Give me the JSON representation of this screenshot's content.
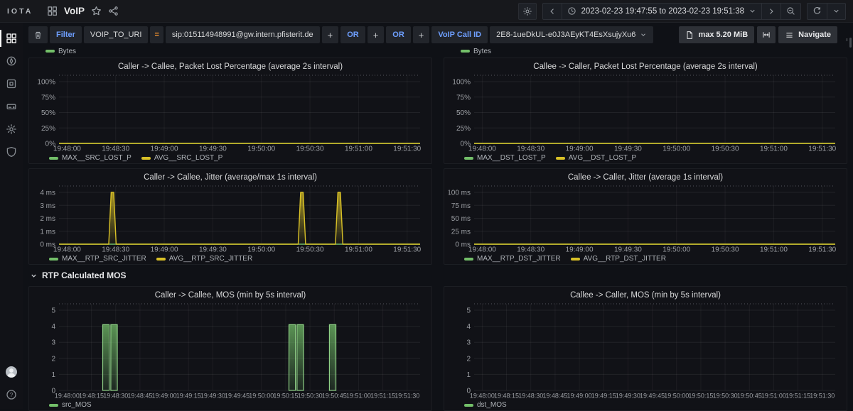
{
  "app": {
    "logo": "IOTA",
    "nav": {
      "title": "VoIP",
      "time_range": "2023-02-23 19:47:55 to 2023-02-23 19:51:38"
    },
    "filter_bar": {
      "filter_label": "Filter",
      "field_chip": "VOIP_TO_URI",
      "operator": "=",
      "value_chip": "sip:015114948991@gw.intern.pfisterit.de",
      "plus": "+",
      "or": "OR",
      "callid_label": "VoIP Call ID",
      "callid_value": "2E8-1ueDkUL-e0J3AEyKT4EsXsujyXu6"
    },
    "actions": {
      "max_size": "max 5.20 MiB",
      "navigate": "Navigate"
    },
    "section_header": "RTP Calculated MOS",
    "cutoff_legend": "Bytes"
  },
  "colors": {
    "green": "#73bf69",
    "yellow": "#d9c127",
    "blue": "#6e9fff",
    "orange": "#ff9830"
  },
  "chart_data": [
    {
      "type": "line",
      "title": "Caller -> Callee, Packet Lost Percentage (average 2s interval)",
      "ylim": [
        0,
        100
      ],
      "y_ticks": [
        {
          "v": 0,
          "label": "0%"
        },
        {
          "v": 25,
          "label": "25%"
        },
        {
          "v": 50,
          "label": "50%"
        },
        {
          "v": 75,
          "label": "75%"
        },
        {
          "v": 100,
          "label": "100%"
        }
      ],
      "x_start": "19:47:55",
      "x_domain_seconds": 223,
      "x_ticks": [
        {
          "t": 5,
          "label": "19:48:00"
        },
        {
          "t": 35,
          "label": "19:48:30"
        },
        {
          "t": 65,
          "label": "19:49:00"
        },
        {
          "t": 95,
          "label": "19:49:30"
        },
        {
          "t": 125,
          "label": "19:50:00"
        },
        {
          "t": 155,
          "label": "19:50:30"
        },
        {
          "t": 185,
          "label": "19:51:00"
        },
        {
          "t": 215,
          "label": "19:51:30"
        }
      ],
      "series": [
        {
          "name": "MAX__SRC_LOST_P",
          "color": "#73bf69",
          "shape": "flat",
          "value": 0
        },
        {
          "name": "AVG__SRC_LOST_P",
          "color": "#d9c127",
          "shape": "flat",
          "value": 0
        }
      ]
    },
    {
      "type": "line",
      "title": "Callee -> Caller, Packet Lost Percentage (average 2s interval)",
      "ylim": [
        0,
        100
      ],
      "y_ticks": [
        {
          "v": 0,
          "label": "0%"
        },
        {
          "v": 25,
          "label": "25%"
        },
        {
          "v": 50,
          "label": "50%"
        },
        {
          "v": 75,
          "label": "75%"
        },
        {
          "v": 100,
          "label": "100%"
        }
      ],
      "x_start": "19:47:55",
      "x_domain_seconds": 223,
      "x_ticks": [
        {
          "t": 5,
          "label": "19:48:00"
        },
        {
          "t": 35,
          "label": "19:48:30"
        },
        {
          "t": 65,
          "label": "19:49:00"
        },
        {
          "t": 95,
          "label": "19:49:30"
        },
        {
          "t": 125,
          "label": "19:50:00"
        },
        {
          "t": 155,
          "label": "19:50:30"
        },
        {
          "t": 185,
          "label": "19:51:00"
        },
        {
          "t": 215,
          "label": "19:51:30"
        }
      ],
      "series": [
        {
          "name": "MAX__DST_LOST_P",
          "color": "#73bf69",
          "shape": "flat",
          "value": 0
        },
        {
          "name": "AVG__DST_LOST_P",
          "color": "#d9c127",
          "shape": "flat",
          "value": 0
        }
      ]
    },
    {
      "type": "line",
      "title": "Caller -> Callee, Jitter (average/max 1s interval)",
      "ylim": [
        0,
        4
      ],
      "y_ticks": [
        {
          "v": 0,
          "label": "0 ms"
        },
        {
          "v": 1,
          "label": "1 ms"
        },
        {
          "v": 2,
          "label": "2 ms"
        },
        {
          "v": 3,
          "label": "3 ms"
        },
        {
          "v": 4,
          "label": "4 ms"
        }
      ],
      "x_start": "19:47:55",
      "x_domain_seconds": 223,
      "x_ticks": [
        {
          "t": 5,
          "label": "19:48:00"
        },
        {
          "t": 35,
          "label": "19:48:30"
        },
        {
          "t": 65,
          "label": "19:49:00"
        },
        {
          "t": 95,
          "label": "19:49:30"
        },
        {
          "t": 125,
          "label": "19:50:00"
        },
        {
          "t": 155,
          "label": "19:50:30"
        },
        {
          "t": 185,
          "label": "19:51:00"
        },
        {
          "t": 215,
          "label": "19:51:30"
        }
      ],
      "series": [
        {
          "name": "MAX__RTP_SRC_JITTER",
          "color": "#73bf69",
          "shape": "flat",
          "value": 0
        },
        {
          "name": "AVG__RTP_SRC_JITTER",
          "color": "#d9c127",
          "shape": "spikes",
          "baseline": 0,
          "spikes": [
            {
              "t": 33,
              "peak": 4
            },
            {
              "t": 150,
              "peak": 4
            },
            {
              "t": 173,
              "peak": 4
            }
          ]
        }
      ]
    },
    {
      "type": "line",
      "title": "Callee -> Caller, Jitter (average 1s interval)",
      "ylim": [
        0,
        100
      ],
      "y_ticks": [
        {
          "v": 0,
          "label": "0 ms"
        },
        {
          "v": 25,
          "label": "25 ms"
        },
        {
          "v": 50,
          "label": "50 ms"
        },
        {
          "v": 75,
          "label": "75 ms"
        },
        {
          "v": 100,
          "label": "100 ms"
        }
      ],
      "x_start": "19:47:55",
      "x_domain_seconds": 223,
      "x_ticks": [
        {
          "t": 5,
          "label": "19:48:00"
        },
        {
          "t": 35,
          "label": "19:48:30"
        },
        {
          "t": 65,
          "label": "19:49:00"
        },
        {
          "t": 95,
          "label": "19:49:30"
        },
        {
          "t": 125,
          "label": "19:50:00"
        },
        {
          "t": 155,
          "label": "19:50:30"
        },
        {
          "t": 185,
          "label": "19:51:00"
        },
        {
          "t": 215,
          "label": "19:51:30"
        }
      ],
      "series": [
        {
          "name": "MAX__RTP_DST_JITTER",
          "color": "#73bf69",
          "shape": "flat",
          "value": 0
        },
        {
          "name": "AVG__RTP_DST_JITTER",
          "color": "#d9c127",
          "shape": "flat",
          "value": 0
        }
      ]
    },
    {
      "type": "bar",
      "title": "Caller -> Callee, MOS (min by 5s interval)",
      "ylim": [
        0,
        5
      ],
      "y_ticks": [
        {
          "v": 0,
          "label": "0"
        },
        {
          "v": 1,
          "label": "1"
        },
        {
          "v": 2,
          "label": "2"
        },
        {
          "v": 3,
          "label": "3"
        },
        {
          "v": 4,
          "label": "4"
        },
        {
          "v": 5,
          "label": "5"
        }
      ],
      "x_start": "19:47:55",
      "x_domain_seconds": 223,
      "x_ticks": [
        {
          "t": 5,
          "label": "19:48:00"
        },
        {
          "t": 20,
          "label": "19:48:15"
        },
        {
          "t": 35,
          "label": "19:48:30"
        },
        {
          "t": 50,
          "label": "19:48:45"
        },
        {
          "t": 65,
          "label": "19:49:00"
        },
        {
          "t": 80,
          "label": "19:49:15"
        },
        {
          "t": 95,
          "label": "19:49:30"
        },
        {
          "t": 110,
          "label": "19:49:45"
        },
        {
          "t": 125,
          "label": "19:50:00"
        },
        {
          "t": 140,
          "label": "19:50:15"
        },
        {
          "t": 155,
          "label": "19:50:30"
        },
        {
          "t": 170,
          "label": "19:50:45"
        },
        {
          "t": 185,
          "label": "19:51:00"
        },
        {
          "t": 200,
          "label": "19:51:15"
        },
        {
          "t": 215,
          "label": "19:51:30"
        }
      ],
      "series": [
        {
          "name": "src_MOS",
          "color": "#73bf69",
          "shape": "bars",
          "bar_width_seconds": 4,
          "bars": [
            {
              "t": 29,
              "v": 4.1
            },
            {
              "t": 34,
              "v": 4.1
            },
            {
              "t": 144,
              "v": 4.1
            },
            {
              "t": 149,
              "v": 4.1
            },
            {
              "t": 169,
              "v": 4.1
            }
          ]
        }
      ]
    },
    {
      "type": "bar",
      "title": "Callee -> Caller, MOS (min by 5s interval)",
      "ylim": [
        0,
        5
      ],
      "y_ticks": [
        {
          "v": 0,
          "label": "0"
        },
        {
          "v": 1,
          "label": "1"
        },
        {
          "v": 2,
          "label": "2"
        },
        {
          "v": 3,
          "label": "3"
        },
        {
          "v": 4,
          "label": "4"
        },
        {
          "v": 5,
          "label": "5"
        }
      ],
      "x_start": "19:47:55",
      "x_domain_seconds": 223,
      "x_ticks": [
        {
          "t": 5,
          "label": "19:48:00"
        },
        {
          "t": 20,
          "label": "19:48:15"
        },
        {
          "t": 35,
          "label": "19:48:30"
        },
        {
          "t": 50,
          "label": "19:48:45"
        },
        {
          "t": 65,
          "label": "19:49:00"
        },
        {
          "t": 80,
          "label": "19:49:15"
        },
        {
          "t": 95,
          "label": "19:49:30"
        },
        {
          "t": 110,
          "label": "19:49:45"
        },
        {
          "t": 125,
          "label": "19:50:00"
        },
        {
          "t": 140,
          "label": "19:50:15"
        },
        {
          "t": 155,
          "label": "19:50:30"
        },
        {
          "t": 170,
          "label": "19:50:45"
        },
        {
          "t": 185,
          "label": "19:51:00"
        },
        {
          "t": 200,
          "label": "19:51:15"
        },
        {
          "t": 215,
          "label": "19:51:30"
        }
      ],
      "series": [
        {
          "name": "dst_MOS",
          "color": "#73bf69",
          "shape": "bars",
          "bar_width_seconds": 4,
          "bars": []
        }
      ]
    }
  ]
}
